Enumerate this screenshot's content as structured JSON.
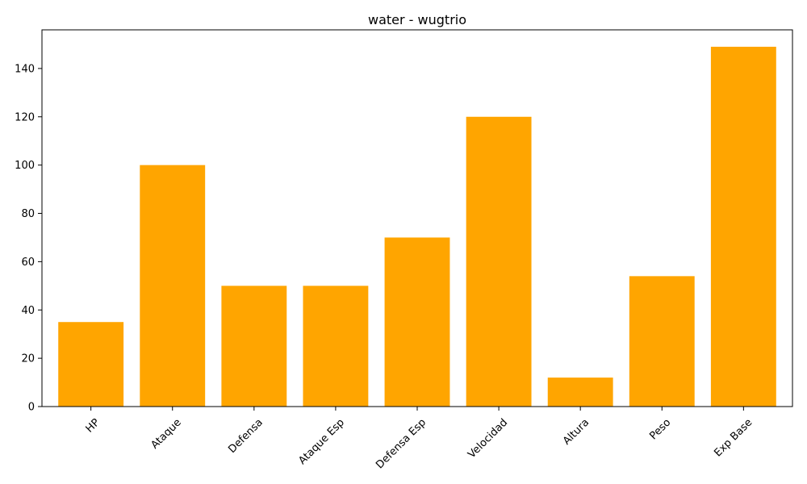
{
  "chart_data": {
    "type": "bar",
    "title": "water - wugtrio",
    "xlabel": "",
    "ylabel": "",
    "categories": [
      "HP",
      "Ataque",
      "Defensa",
      "Ataque Esp",
      "Defensa Esp",
      "Velocidad",
      "Altura",
      "Peso",
      "Exp Base"
    ],
    "values": [
      35,
      100,
      50,
      50,
      70,
      120,
      12,
      54,
      149
    ],
    "ylim": [
      0,
      156
    ],
    "yticks": [
      0,
      20,
      40,
      60,
      80,
      100,
      120,
      140
    ],
    "bar_color": "#ffa500",
    "grid": false,
    "legend": "none"
  }
}
